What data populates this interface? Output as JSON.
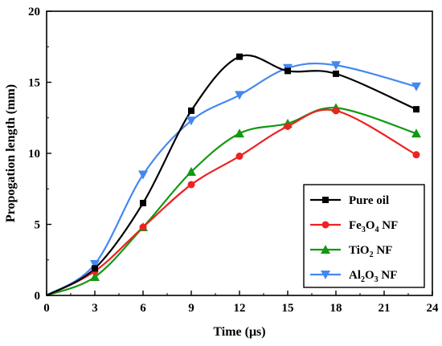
{
  "chart_data": {
    "type": "line",
    "title": "",
    "xlabel": "Time (μs)",
    "ylabel": "Propogation length (mm)",
    "xlim": [
      0,
      24
    ],
    "ylim": [
      0,
      20
    ],
    "x_ticks": [
      "0",
      "3",
      "6",
      "9",
      "12",
      "15",
      "18",
      "21",
      "24"
    ],
    "y_ticks": [
      "0",
      "5",
      "10",
      "15",
      "20"
    ],
    "grid": false,
    "legend_position": "bottom-right",
    "series": [
      {
        "name": "Pure oil",
        "legend_main": "Pure oil",
        "legend_sub": "",
        "legend_tail": "",
        "color": "#000000",
        "marker": "square",
        "x": [
          0,
          3,
          6,
          9,
          12,
          15,
          18,
          23
        ],
        "y": [
          0,
          1.9,
          6.5,
          13.0,
          16.8,
          15.8,
          15.6,
          13.1
        ]
      },
      {
        "name": "Fe3O4 NF",
        "legend_main": "Fe",
        "legend_sub": "3",
        "legend_mid": "O",
        "legend_sub2": "4",
        "legend_tail": " NF",
        "color": "#ee2222",
        "marker": "circle",
        "x": [
          0,
          3,
          6,
          9,
          12,
          15,
          18,
          23
        ],
        "y": [
          0,
          1.7,
          4.8,
          7.8,
          9.8,
          11.9,
          13.0,
          9.9
        ]
      },
      {
        "name": "TiO2 NF",
        "legend_main": "TiO",
        "legend_sub": "2",
        "legend_tail": " NF",
        "color": "#119911",
        "marker": "triangle-up",
        "x": [
          0,
          3,
          6,
          9,
          12,
          15,
          18,
          23
        ],
        "y": [
          0,
          1.3,
          4.8,
          8.7,
          11.4,
          12.1,
          13.2,
          11.4
        ]
      },
      {
        "name": "Al2O3 NF",
        "legend_main": "Al",
        "legend_sub": "2",
        "legend_mid": "O",
        "legend_sub2": "3",
        "legend_tail": " NF",
        "color": "#4488ee",
        "marker": "triangle-down",
        "x": [
          0,
          3,
          6,
          9,
          12,
          15,
          18,
          23
        ],
        "y": [
          0,
          2.2,
          8.5,
          12.3,
          14.1,
          16.0,
          16.2,
          14.7
        ]
      }
    ]
  }
}
